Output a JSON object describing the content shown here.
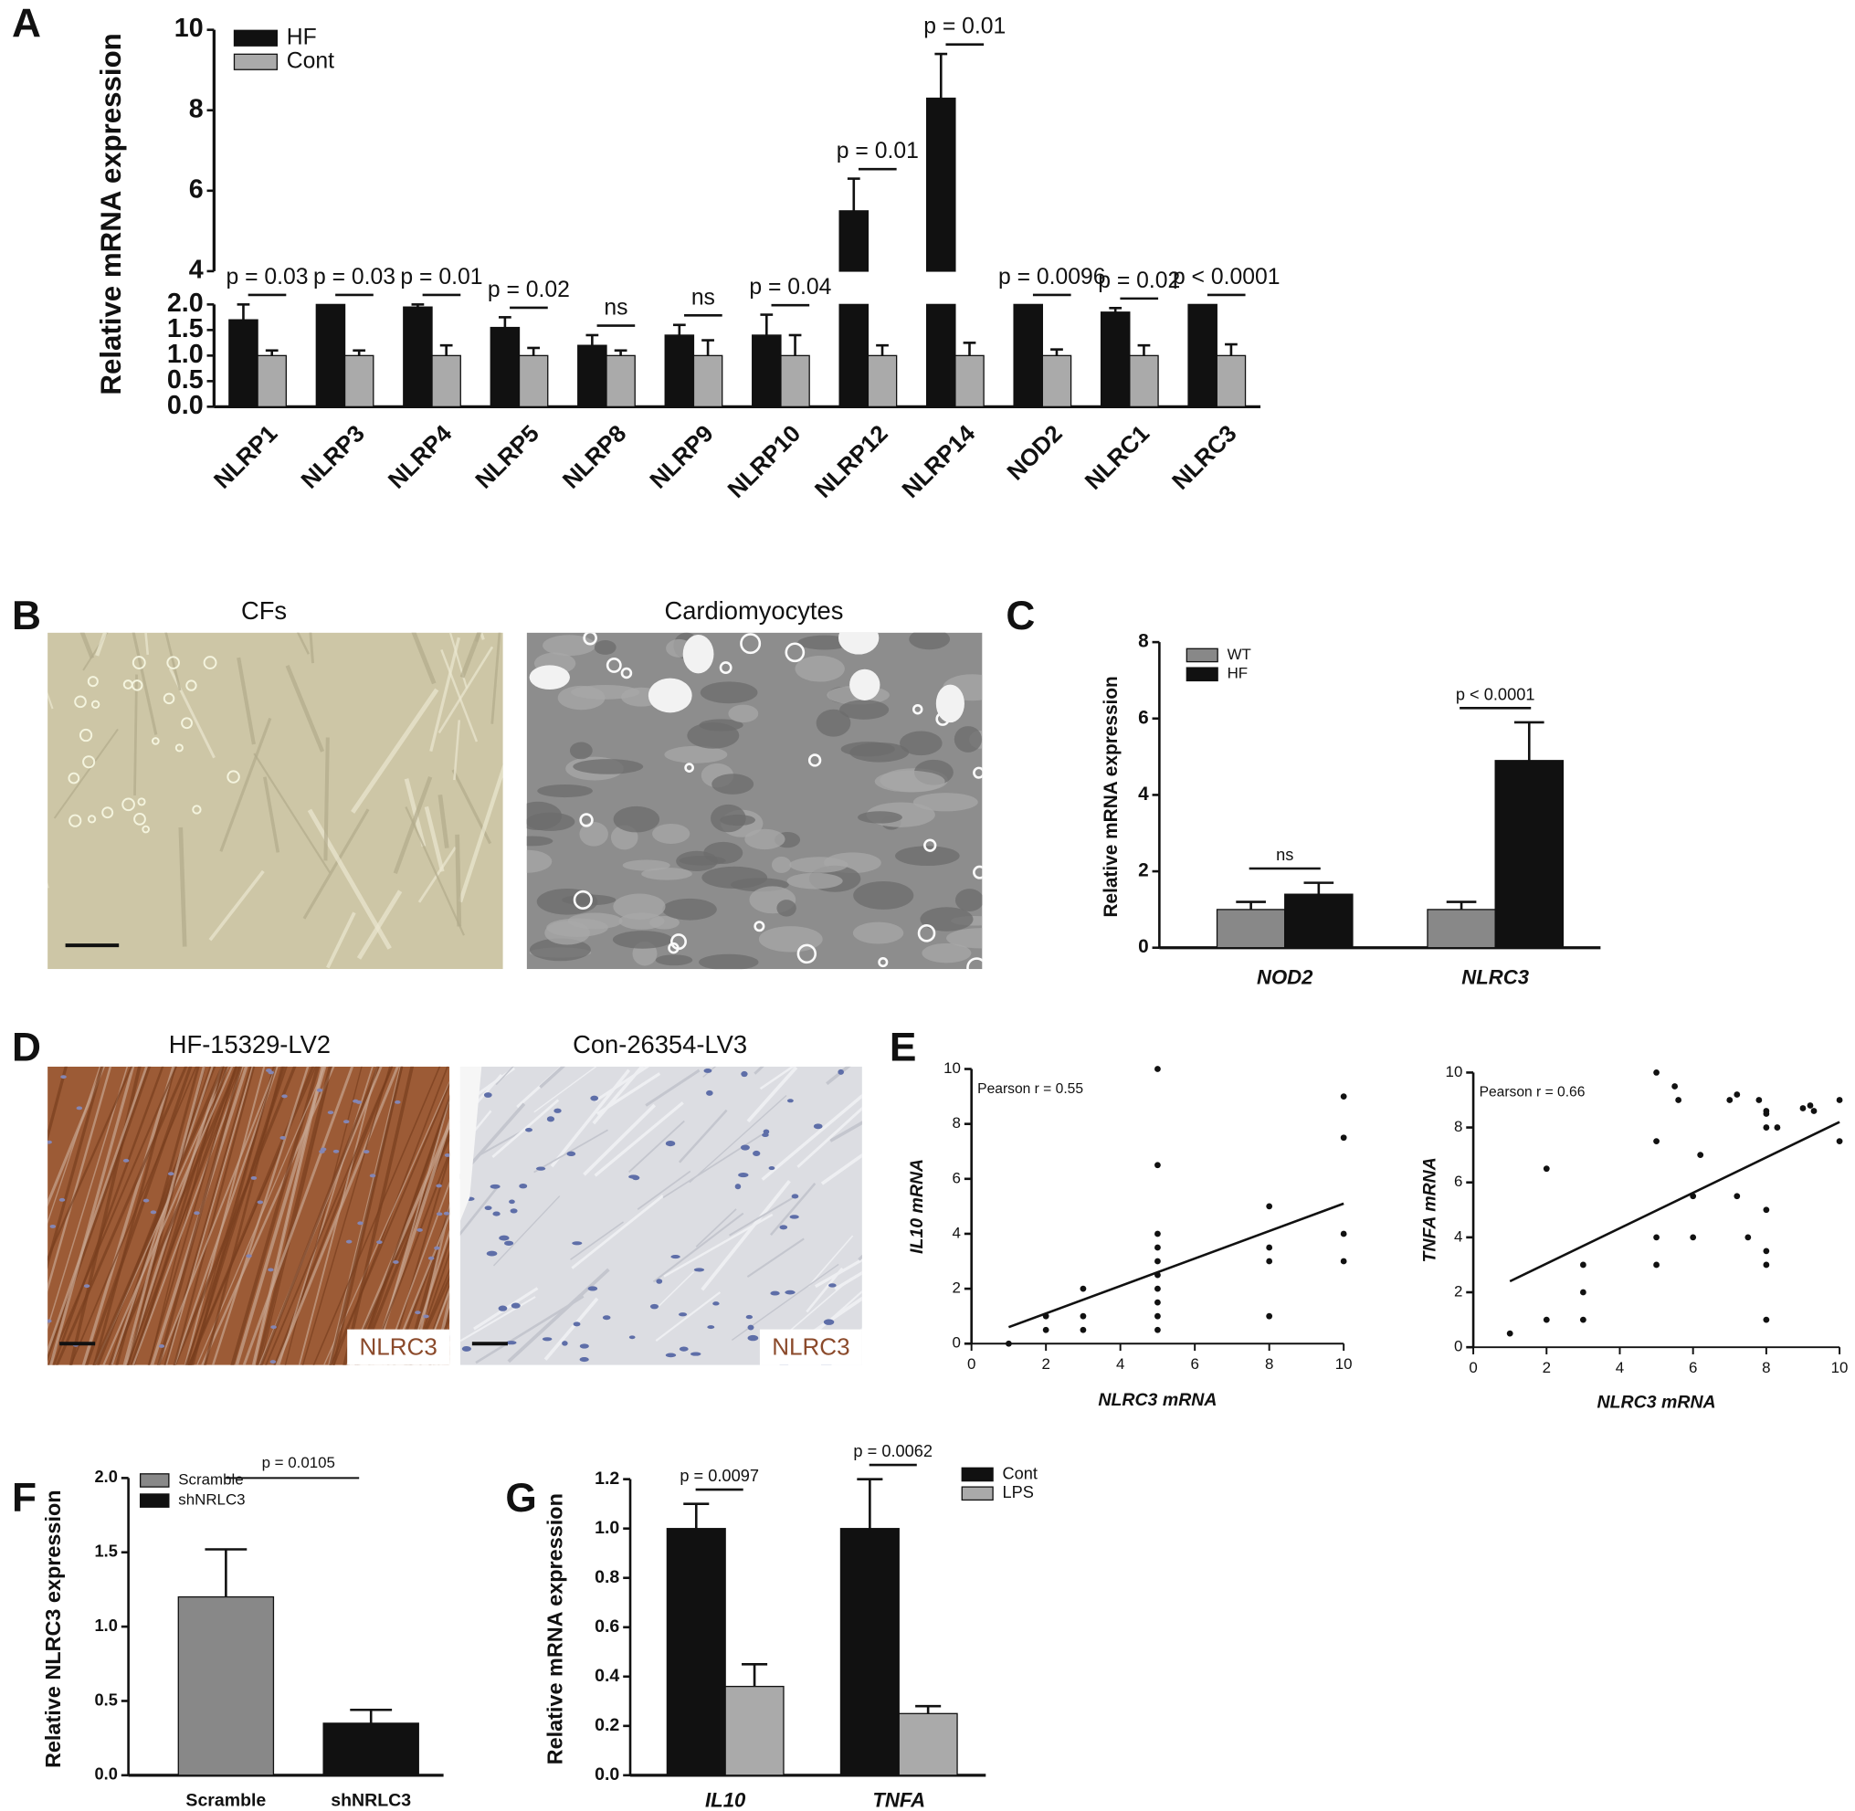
{
  "chart_data": [
    {
      "type": "bar",
      "label": "A",
      "ylabel": "Relative mRNA expression",
      "categories": [
        "NLRP1",
        "NLRP3",
        "NLRP4",
        "NLRP5",
        "NLRP8",
        "NLRP9",
        "NLRP10",
        "NLRP12",
        "NLRP14",
        "NOD2",
        "NLRC1",
        "NLRC3"
      ],
      "series": [
        {
          "name": "HF",
          "color": "#111111",
          "values": [
            1.7,
            2,
            1.95,
            1.55,
            1.2,
            1.4,
            1.4,
            5.5,
            8.3,
            2,
            1.85,
            2
          ],
          "errors": [
            0.3,
            0,
            0.05,
            0.2,
            0.2,
            0.2,
            0.4,
            0.8,
            1.1,
            0,
            0.08,
            0
          ]
        },
        {
          "name": "Cont",
          "color": "#aaaaaa",
          "values": [
            1,
            1,
            1,
            1,
            1,
            1,
            1,
            1,
            1,
            1,
            1,
            1
          ],
          "errors": [
            0.1,
            0.1,
            0.2,
            0.15,
            0.1,
            0.3,
            0.4,
            0.2,
            0.25,
            0.12,
            0.2,
            0.22
          ]
        }
      ],
      "annotations": [
        "p = 0.03",
        "p = 0.03",
        "p = 0.01",
        "p = 0.02",
        "ns",
        "ns",
        "p = 0.04",
        "p = 0.01",
        "p = 0.01",
        "p = 0.0096",
        "p = 0.02",
        "p < 0.0001"
      ],
      "ylim": [
        0,
        10
      ],
      "ybreak": [
        2,
        4
      ],
      "yticks": [
        {
          "value": 0,
          "label": "0.0"
        },
        0.5,
        {
          "value": 1,
          "label": "1.0"
        },
        1.5,
        {
          "value": 2,
          "label": "2.0"
        },
        4,
        6,
        8,
        10
      ],
      "legend": "upper left"
    },
    {
      "type": "bar",
      "label": "C",
      "ylabel": "Relative mRNA expression",
      "categories": [
        "NOD2",
        "NLRC3"
      ],
      "series": [
        {
          "name": "WT",
          "color": "#888888",
          "values": [
            1,
            1
          ],
          "errors": [
            0.2,
            0.2
          ]
        },
        {
          "name": "HF",
          "color": "#111111",
          "values": [
            1.4,
            4.9
          ],
          "errors": [
            0.3,
            1.0
          ]
        }
      ],
      "annotations": [
        "ns",
        "p < 0.0001"
      ],
      "ylim": [
        0,
        8
      ],
      "yticks": [
        0,
        2,
        4,
        6,
        8
      ],
      "legend": "upper left"
    },
    {
      "type": "scatter",
      "label": "E",
      "xlabel": "NLRC3 mRNA",
      "ylabel": "IL10 mRNA",
      "annotation": "Pearson r = 0.55",
      "x": [
        1,
        2,
        2,
        3,
        3,
        3,
        5,
        5,
        5,
        5,
        5,
        5,
        5,
        5,
        5,
        5,
        8,
        8,
        8,
        8,
        10,
        10,
        10,
        10
      ],
      "y": [
        0,
        0.5,
        1,
        0.5,
        1,
        2,
        0.5,
        1,
        1.5,
        2,
        2.5,
        3,
        3.5,
        4,
        6.5,
        10,
        1,
        3,
        3.5,
        5,
        3,
        4,
        7.5,
        9
      ],
      "fit": {
        "x": [
          1,
          10
        ],
        "y": [
          0.6,
          5.1
        ]
      },
      "xlim": [
        0,
        10
      ],
      "ylim": [
        0,
        10
      ],
      "xticks": [
        0,
        2,
        4,
        6,
        8,
        10
      ],
      "yticks": [
        0,
        2,
        4,
        6,
        8,
        10
      ]
    },
    {
      "type": "scatter",
      "xlabel": "NLRC3 mRNA",
      "ylabel": "TNFA mRNA",
      "annotation": "Pearson r = 0.66",
      "x": [
        1,
        2,
        2,
        3,
        3,
        3,
        5,
        5,
        5,
        5,
        5.5,
        5.6,
        6,
        6,
        6.2,
        7,
        7.2,
        7.2,
        7.5,
        7.8,
        8,
        8,
        8,
        8,
        8,
        8,
        8,
        8.3,
        9,
        9.2,
        9.3,
        10,
        10
      ],
      "y": [
        0.5,
        1,
        6.5,
        1,
        2,
        3,
        3,
        4,
        7.5,
        10,
        9.5,
        9,
        5.5,
        4,
        7,
        9,
        9.2,
        5.5,
        4,
        9,
        8.5,
        8.6,
        8,
        5,
        3.5,
        3,
        1,
        8,
        8.7,
        8.8,
        8.6,
        9,
        7.5
      ],
      "fit": {
        "x": [
          1,
          10
        ],
        "y": [
          2.4,
          8.2
        ]
      },
      "xlim": [
        0,
        10
      ],
      "ylim": [
        0,
        10
      ],
      "xticks": [
        0,
        2,
        4,
        6,
        8,
        10
      ],
      "yticks": [
        0,
        2,
        4,
        6,
        8,
        10
      ]
    },
    {
      "type": "bar",
      "label": "F",
      "ylabel": "Relative NLRC3 expression",
      "categories": [
        "Scramble",
        "shNRLC3"
      ],
      "series": [
        {
          "name": "Scramble",
          "color": "#888888",
          "values": [
            1.2,
            null
          ],
          "errors": [
            0.32,
            null
          ]
        },
        {
          "name": "shNRLC3",
          "color": "#111111",
          "values": [
            null,
            0.35
          ],
          "errors": [
            null,
            0.09
          ]
        }
      ],
      "annotation": "p = 0.0105",
      "ylim": [
        0,
        2
      ],
      "yticks": [
        {
          "value": 0,
          "label": "0.0"
        },
        0.5,
        {
          "value": 1,
          "label": "1.0"
        },
        1.5,
        {
          "value": 2,
          "label": "2.0"
        }
      ],
      "legend": "upper left"
    },
    {
      "type": "bar",
      "label": "G",
      "ylabel": "Relative mRNA expression",
      "categories": [
        "IL10",
        "TNFA"
      ],
      "series": [
        {
          "name": "Cont",
          "color": "#111111",
          "values": [
            1,
            1
          ],
          "errors": [
            0.1,
            0.2
          ]
        },
        {
          "name": "LPS",
          "color": "#aaaaaa",
          "values": [
            0.36,
            0.25
          ],
          "errors": [
            0.09,
            0.03
          ]
        }
      ],
      "annotations": [
        "p = 0.0097",
        "p = 0.0062"
      ],
      "ylim": [
        0,
        1.2
      ],
      "yticks": [
        {
          "value": 0,
          "label": "0.0"
        },
        0.2,
        0.4,
        0.6,
        0.8,
        {
          "value": 1,
          "label": "1.0"
        },
        1.2
      ],
      "legend": "upper right"
    }
  ],
  "images": [
    {
      "label": "B",
      "panels": [
        {
          "title": "CFs"
        },
        {
          "title": "Cardiomyocytes"
        }
      ]
    },
    {
      "label": "D",
      "panels": [
        {
          "title": "HF-15329-LV2",
          "stain": "NLRC3"
        },
        {
          "title": "Con-26354-LV3",
          "stain": "NLRC3"
        }
      ]
    }
  ]
}
